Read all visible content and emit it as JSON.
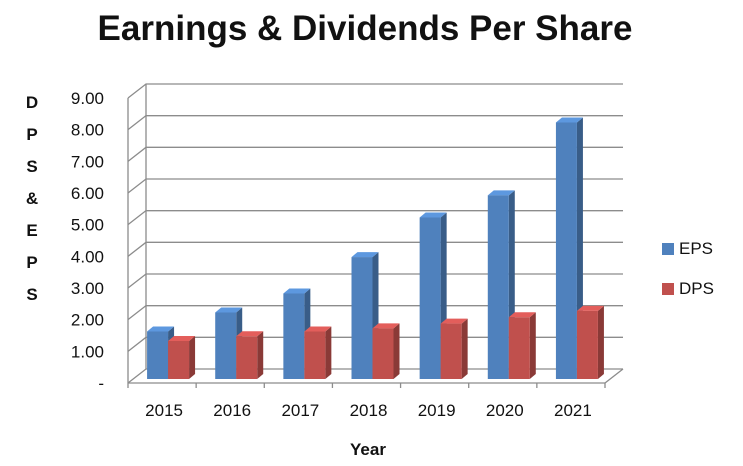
{
  "chart_data": {
    "type": "bar",
    "title": "Earnings & Dividends Per Share",
    "xlabel": "Year",
    "ylabel": "DPS & EPS",
    "categories": [
      "2015",
      "2016",
      "2017",
      "2018",
      "2019",
      "2020",
      "2021"
    ],
    "series": [
      {
        "name": "EPS",
        "color": "#4f81bd",
        "values": [
          1.5,
          2.1,
          2.7,
          3.85,
          5.1,
          5.8,
          8.1
        ]
      },
      {
        "name": "DPS",
        "color": "#c0504d",
        "values": [
          1.2,
          1.35,
          1.5,
          1.6,
          1.75,
          1.95,
          2.15
        ]
      }
    ],
    "ylim": [
      0,
      9
    ],
    "yticks": [
      "-",
      "1.00",
      "2.00",
      "3.00",
      "4.00",
      "5.00",
      "6.00",
      "7.00",
      "8.00",
      "9.00"
    ],
    "grid": true,
    "legend_position": "right",
    "style": "3d-clustered-column"
  }
}
